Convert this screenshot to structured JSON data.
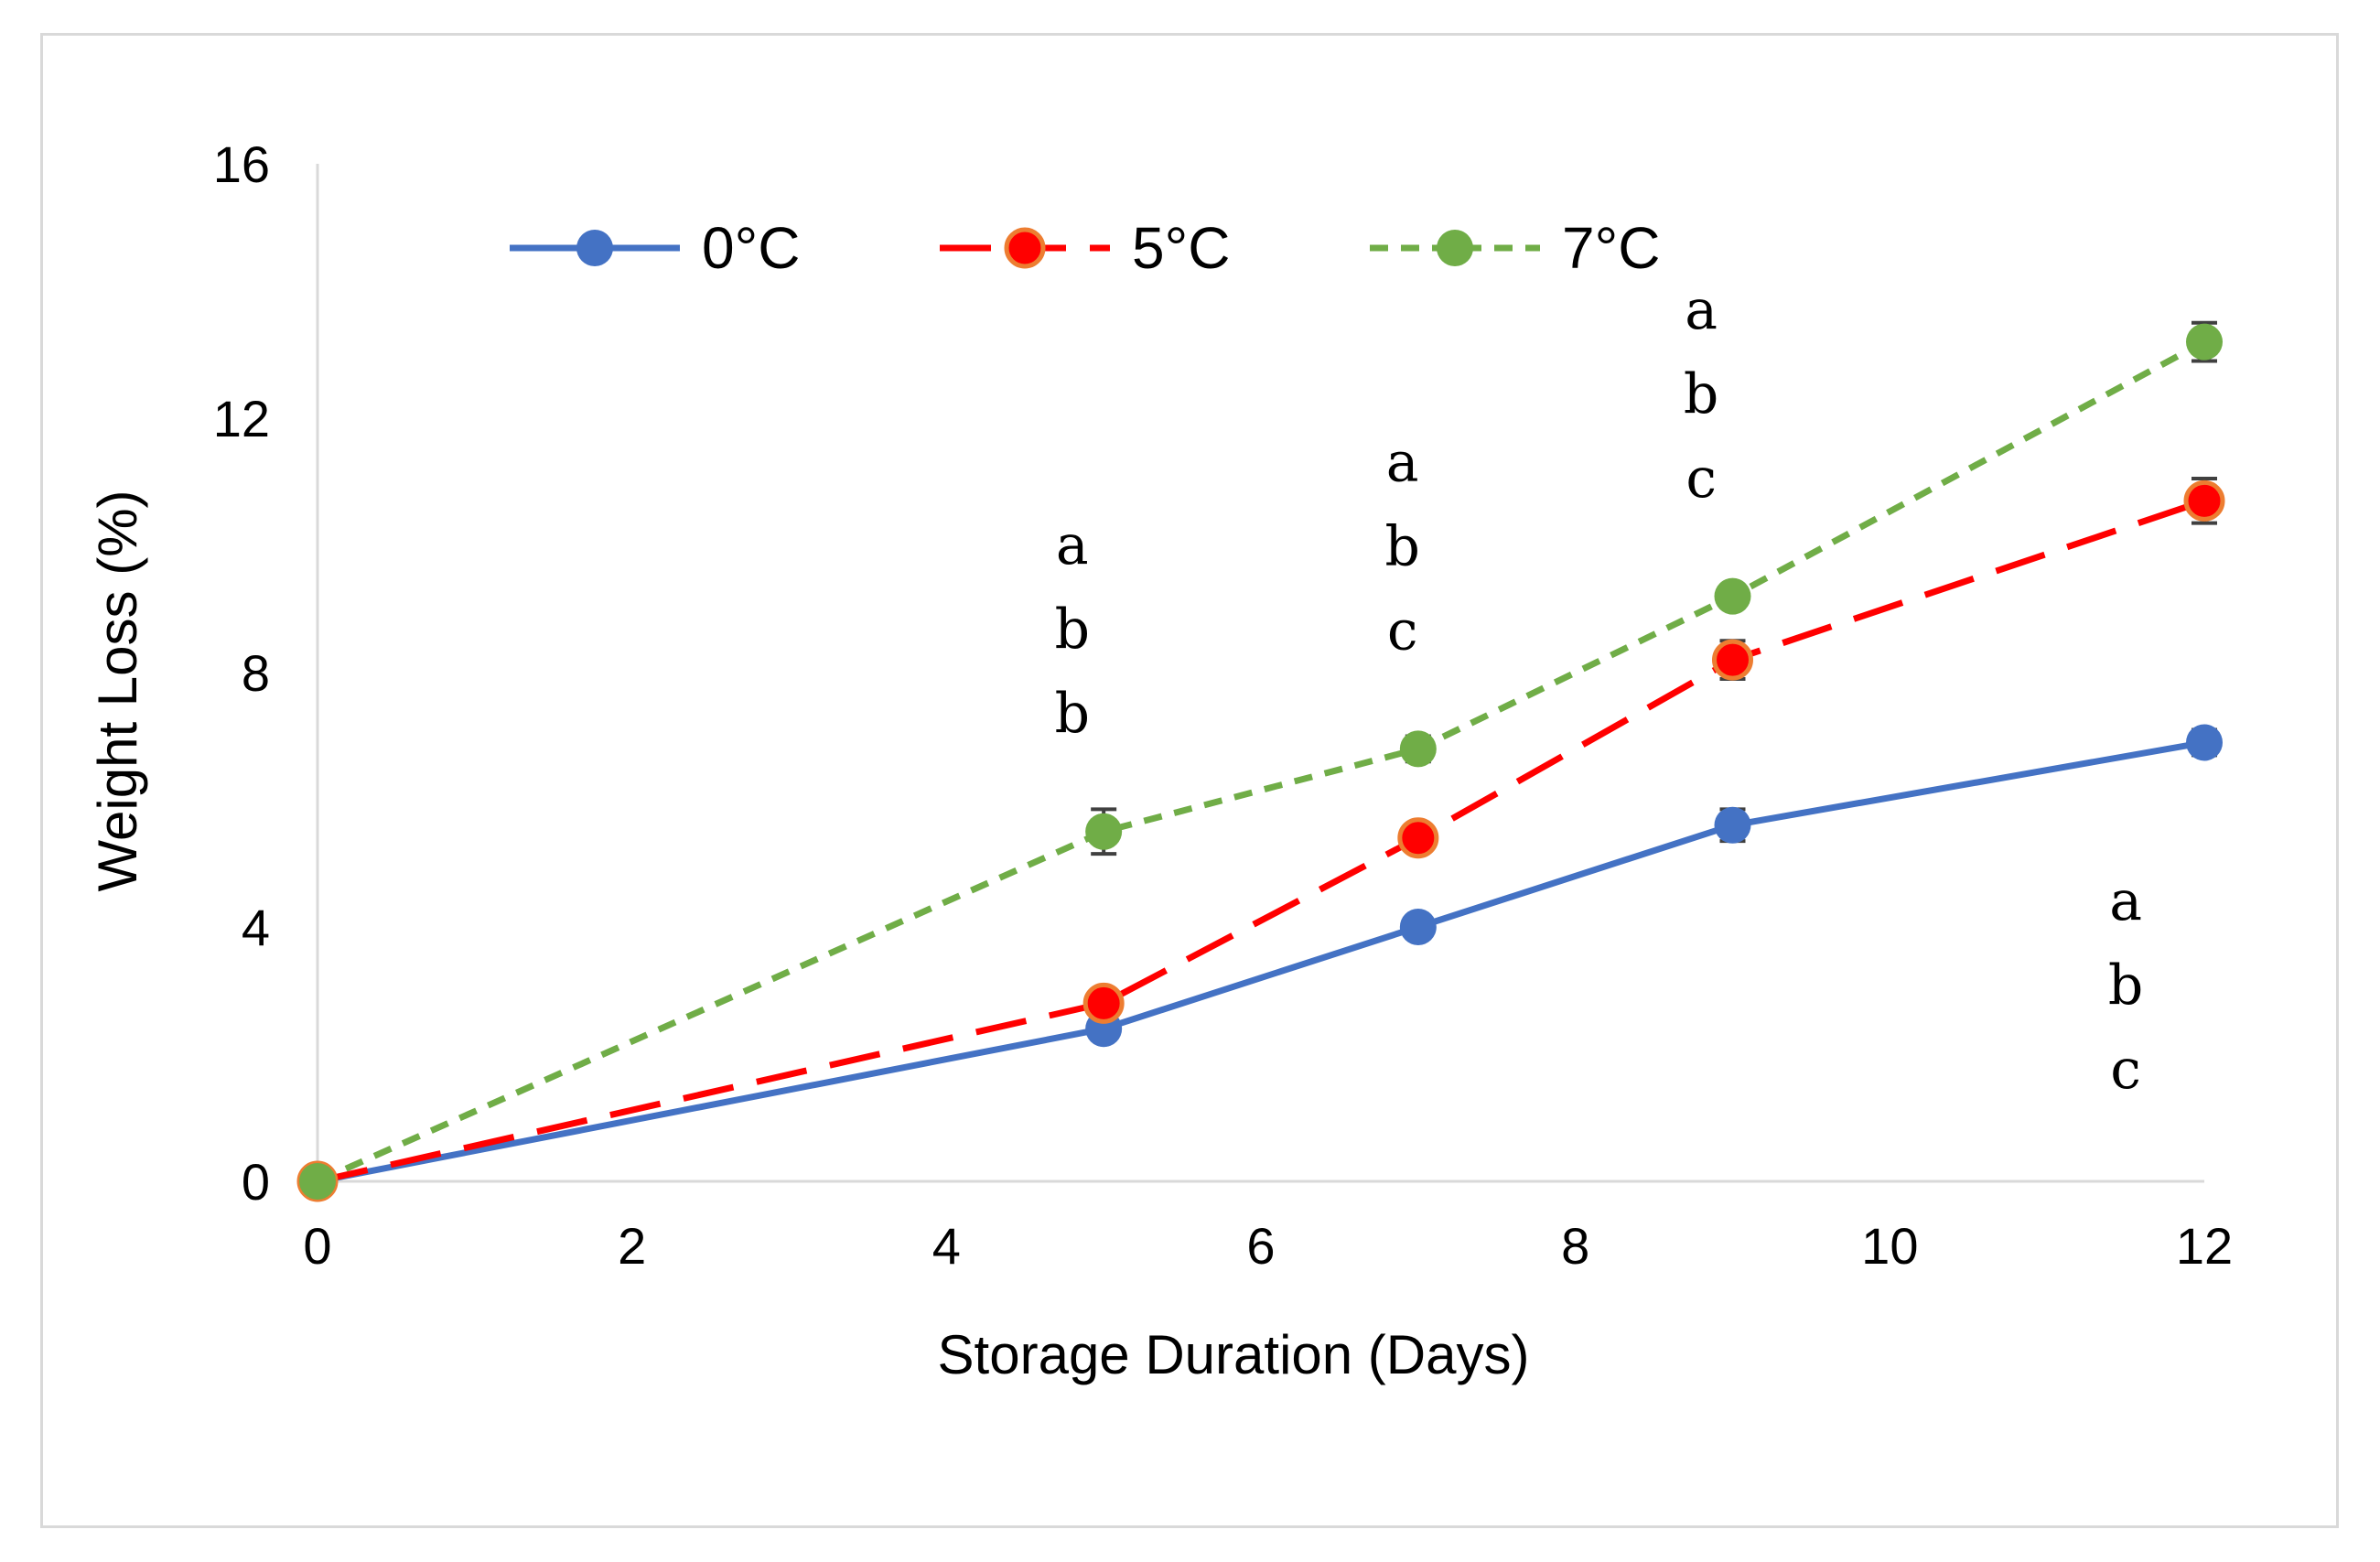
{
  "chart_data": {
    "type": "line",
    "title": "",
    "xlabel": "Storage Duration (Days)",
    "ylabel": "Weight Loss (%)",
    "xlim": [
      0,
      12
    ],
    "ylim": [
      0,
      16
    ],
    "x_ticks": [
      0,
      2,
      4,
      6,
      8,
      10,
      12
    ],
    "y_ticks": [
      0,
      4,
      8,
      12,
      16
    ],
    "x_tick_labels": [
      "0",
      "2",
      "4",
      "6",
      "8",
      "10",
      "12"
    ],
    "y_tick_labels": [
      "0",
      "4",
      "8",
      "12",
      "16"
    ],
    "grid": false,
    "legend_position": "top-left",
    "series": [
      {
        "name": "0°C",
        "color": "#4472C4",
        "line_style": "solid",
        "x": [
          0,
          5,
          7,
          9,
          12
        ],
        "values": [
          0,
          2.4,
          4.0,
          5.6,
          6.9
        ],
        "errors": [
          0,
          0.15,
          0.15,
          0.25,
          0.2
        ]
      },
      {
        "name": "5°C",
        "color": "#FF0000",
        "marker_edge_color": "#ED7D31",
        "line_style": "long-dash",
        "x": [
          0,
          5,
          7,
          9,
          12
        ],
        "values": [
          0,
          2.8,
          5.4,
          8.2,
          10.7
        ],
        "errors": [
          0,
          0.15,
          0.15,
          0.3,
          0.35
        ]
      },
      {
        "name": "7°C",
        "color": "#70AD47",
        "line_style": "short-dash",
        "x": [
          0,
          5,
          7,
          9,
          12
        ],
        "values": [
          0,
          5.5,
          6.8,
          9.2,
          13.2
        ],
        "errors": [
          0,
          0.35,
          0.2,
          0.15,
          0.3
        ]
      }
    ],
    "annotations": [
      {
        "x": 4.8,
        "letters": [
          "a",
          "b",
          "b"
        ],
        "top_y": 10.0
      },
      {
        "x": 6.9,
        "letters": [
          "a",
          "b",
          "c"
        ],
        "top_y": 11.3
      },
      {
        "x": 8.8,
        "letters": [
          "a",
          "b",
          "c"
        ],
        "top_y": 13.7
      },
      {
        "x": 11.5,
        "letters": [
          "a",
          "b",
          "c"
        ],
        "top_y": 4.4
      }
    ]
  }
}
